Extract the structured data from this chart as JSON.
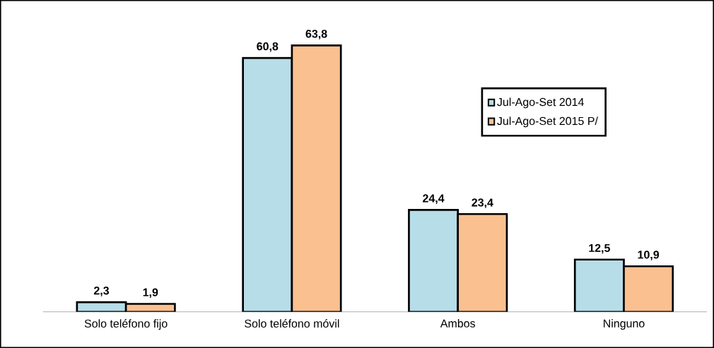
{
  "chart_data": {
    "type": "bar",
    "categories": [
      "Solo teléfono fijo",
      "Solo teléfono móvil",
      "Ambos",
      "Ninguno"
    ],
    "series": [
      {
        "name": "Jul-Ago-Set 2014",
        "color": "#b7dde8",
        "values": [
          2.3,
          60.8,
          24.4,
          12.5
        ],
        "value_labels": [
          "2,3",
          "60,8",
          "24,4",
          "12,5"
        ]
      },
      {
        "name": "Jul-Ago-Set 2015 P/",
        "color": "#fac090",
        "values": [
          1.9,
          63.8,
          23.4,
          10.9
        ],
        "value_labels": [
          "1,9",
          "63,8",
          "23,4",
          "10,9"
        ]
      }
    ],
    "legend": "right"
  }
}
